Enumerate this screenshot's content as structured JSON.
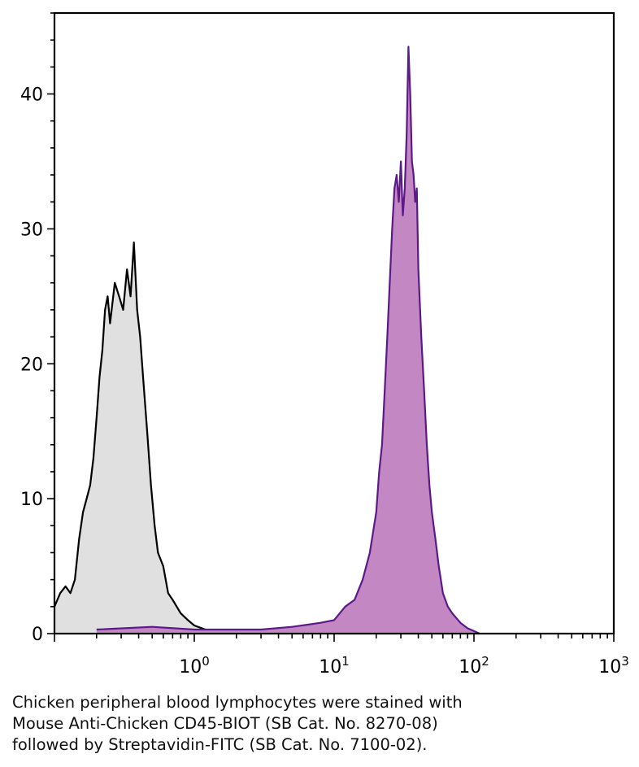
{
  "caption": {
    "line1": "Chicken peripheral blood lymphocytes were stained with",
    "line2": "Mouse Anti-Chicken CD45-BIOT (SB Cat. No. 8270-08)",
    "line3": "followed by Streptavidin-FITC (SB Cat. No. 7100-02)."
  },
  "chart_data": {
    "type": "area",
    "title": "",
    "xlabel": "",
    "ylabel": "",
    "x_scale": "log",
    "xlim": [
      0.1,
      1000
    ],
    "ylim": [
      0,
      46
    ],
    "x_tick_labels": [
      {
        "value": 1,
        "base": "10",
        "exp": "0"
      },
      {
        "value": 10,
        "base": "10",
        "exp": "1"
      },
      {
        "value": 100,
        "base": "10",
        "exp": "2"
      },
      {
        "value": 1000,
        "base": "10",
        "exp": "3"
      }
    ],
    "y_ticks": [
      0,
      10,
      20,
      30,
      40
    ],
    "grid": false,
    "legend": "none",
    "series": [
      {
        "color_line": "#000000",
        "color_fill": "#e0e0e0",
        "x": [
          0.1,
          0.11,
          0.12,
          0.13,
          0.14,
          0.15,
          0.16,
          0.17,
          0.18,
          0.19,
          0.2,
          0.21,
          0.22,
          0.23,
          0.24,
          0.25,
          0.27,
          0.29,
          0.31,
          0.33,
          0.35,
          0.37,
          0.39,
          0.41,
          0.43,
          0.46,
          0.49,
          0.52,
          0.55,
          0.6,
          0.65,
          0.7,
          0.8,
          0.9,
          1.0,
          1.2,
          1.5,
          2.0
        ],
        "y": [
          2,
          3,
          3.5,
          3,
          4,
          7,
          9,
          10,
          11,
          13,
          16,
          19,
          21,
          24,
          25,
          23,
          26,
          25,
          24,
          27,
          25,
          29,
          24,
          22,
          19,
          15,
          11,
          8,
          6,
          5,
          3,
          2.5,
          1.5,
          1,
          0.6,
          0.3,
          0.2,
          0
        ]
      },
      {
        "color_line": "#5b1a87",
        "color_fill": "#c388c3",
        "x": [
          0.2,
          0.5,
          1,
          2,
          3,
          5,
          8,
          10,
          12,
          14,
          16,
          18,
          20,
          21,
          22,
          23,
          24,
          25,
          26,
          27,
          28,
          29,
          30,
          31,
          32,
          33,
          34,
          35,
          36,
          37,
          38,
          39,
          40,
          42,
          44,
          46,
          48,
          50,
          53,
          56,
          60,
          65,
          70,
          80,
          90,
          110
        ],
        "y": [
          0.3,
          0.5,
          0.3,
          0.3,
          0.3,
          0.5,
          0.8,
          1,
          2,
          2.5,
          4,
          6,
          9,
          12,
          14,
          18,
          22,
          26,
          30,
          33,
          34,
          32,
          35,
          31,
          33,
          37,
          43.5,
          40,
          35,
          34,
          32,
          33,
          27,
          22,
          18,
          14,
          11,
          9,
          7,
          5,
          3,
          2,
          1.5,
          0.8,
          0.4,
          0
        ]
      }
    ]
  }
}
